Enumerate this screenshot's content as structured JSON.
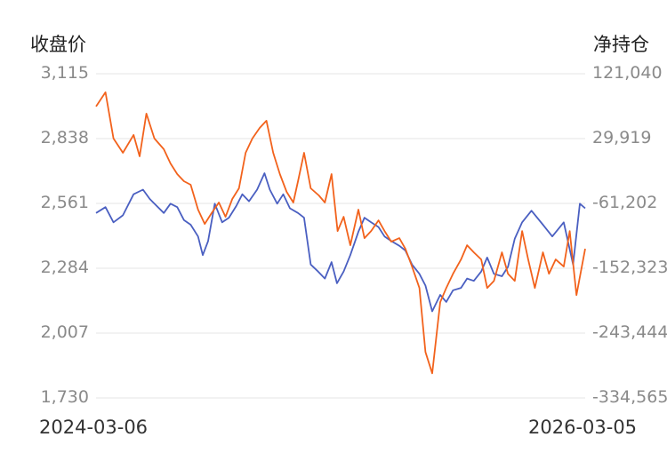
{
  "chart_data": {
    "type": "line",
    "title": "",
    "left_axis_title": "收盘价",
    "right_axis_title": "净持仓",
    "x_range": [
      "2024-03-06",
      "2026-03-05"
    ],
    "x_labels": [
      "2024-03-06",
      "2026-03-05"
    ],
    "left_ticks": [
      "3,115",
      "2,838",
      "2,561",
      "2,284",
      "2,007",
      "1,730"
    ],
    "right_ticks": [
      "121,040",
      "29,919",
      "-61,202",
      "-152,323",
      "-243,444",
      "-334,565"
    ],
    "y_left_lim": [
      1730,
      3115
    ],
    "y_right_lim": [
      -334565,
      121040
    ],
    "grid": true,
    "series": [
      {
        "axis": "left",
        "color": "#4a5fc1",
        "points": [
          [
            "2024-03-06",
            2520
          ],
          [
            "2024-03-20",
            2545
          ],
          [
            "2024-04-01",
            2480
          ],
          [
            "2024-04-15",
            2510
          ],
          [
            "2024-05-01",
            2600
          ],
          [
            "2024-05-15",
            2620
          ],
          [
            "2024-05-25",
            2580
          ],
          [
            "2024-06-01",
            2560
          ],
          [
            "2024-06-15",
            2520
          ],
          [
            "2024-06-25",
            2560
          ],
          [
            "2024-07-05",
            2545
          ],
          [
            "2024-07-15",
            2490
          ],
          [
            "2024-07-25",
            2470
          ],
          [
            "2024-08-05",
            2420
          ],
          [
            "2024-08-12",
            2340
          ],
          [
            "2024-08-20",
            2400
          ],
          [
            "2024-08-30",
            2560
          ],
          [
            "2024-09-10",
            2480
          ],
          [
            "2024-09-20",
            2500
          ],
          [
            "2024-10-01",
            2550
          ],
          [
            "2024-10-10",
            2600
          ],
          [
            "2024-10-20",
            2570
          ],
          [
            "2024-11-01",
            2620
          ],
          [
            "2024-11-12",
            2690
          ],
          [
            "2024-11-20",
            2620
          ],
          [
            "2024-12-01",
            2560
          ],
          [
            "2024-12-10",
            2600
          ],
          [
            "2024-12-20",
            2540
          ],
          [
            "2025-01-01",
            2520
          ],
          [
            "2025-01-10",
            2500
          ],
          [
            "2025-01-20",
            2300
          ],
          [
            "2025-01-31",
            2270
          ],
          [
            "2025-02-10",
            2240
          ],
          [
            "2025-02-20",
            2310
          ],
          [
            "2025-02-28",
            2220
          ],
          [
            "2025-03-10",
            2270
          ],
          [
            "2025-03-20",
            2340
          ],
          [
            "2025-04-01",
            2440
          ],
          [
            "2025-04-10",
            2500
          ],
          [
            "2025-04-20",
            2480
          ],
          [
            "2025-05-01",
            2460
          ],
          [
            "2025-05-10",
            2420
          ],
          [
            "2025-05-20",
            2400
          ],
          [
            "2025-06-01",
            2380
          ],
          [
            "2025-06-10",
            2360
          ],
          [
            "2025-06-20",
            2300
          ],
          [
            "2025-07-01",
            2260
          ],
          [
            "2025-07-10",
            2210
          ],
          [
            "2025-07-20",
            2100
          ],
          [
            "2025-08-01",
            2170
          ],
          [
            "2025-08-10",
            2140
          ],
          [
            "2025-08-20",
            2190
          ],
          [
            "2025-09-01",
            2200
          ],
          [
            "2025-09-10",
            2240
          ],
          [
            "2025-09-20",
            2230
          ],
          [
            "2025-10-01",
            2270
          ],
          [
            "2025-10-10",
            2330
          ],
          [
            "2025-10-20",
            2260
          ],
          [
            "2025-11-01",
            2250
          ],
          [
            "2025-11-10",
            2290
          ],
          [
            "2025-11-20",
            2410
          ],
          [
            "2025-12-01",
            2480
          ],
          [
            "2025-12-15",
            2530
          ],
          [
            "2026-01-01",
            2470
          ],
          [
            "2026-01-15",
            2420
          ],
          [
            "2026-02-01",
            2480
          ],
          [
            "2026-02-15",
            2300
          ],
          [
            "2026-02-25",
            2560
          ],
          [
            "2026-03-05",
            2540
          ]
        ]
      },
      {
        "axis": "right",
        "color": "#f2621c",
        "points": [
          [
            "2024-03-06",
            75000
          ],
          [
            "2024-03-20",
            95000
          ],
          [
            "2024-04-01",
            30000
          ],
          [
            "2024-04-15",
            10000
          ],
          [
            "2024-05-01",
            35000
          ],
          [
            "2024-05-10",
            5000
          ],
          [
            "2024-05-20",
            65000
          ],
          [
            "2024-06-01",
            30000
          ],
          [
            "2024-06-15",
            15000
          ],
          [
            "2024-06-25",
            -5000
          ],
          [
            "2024-07-05",
            -20000
          ],
          [
            "2024-07-15",
            -30000
          ],
          [
            "2024-07-25",
            -35000
          ],
          [
            "2024-08-05",
            -70000
          ],
          [
            "2024-08-15",
            -90000
          ],
          [
            "2024-08-25",
            -75000
          ],
          [
            "2024-09-05",
            -60000
          ],
          [
            "2024-09-15",
            -80000
          ],
          [
            "2024-09-25",
            -55000
          ],
          [
            "2024-10-05",
            -40000
          ],
          [
            "2024-10-15",
            10000
          ],
          [
            "2024-10-25",
            30000
          ],
          [
            "2024-11-05",
            45000
          ],
          [
            "2024-11-15",
            55000
          ],
          [
            "2024-11-25",
            10000
          ],
          [
            "2024-12-05",
            -20000
          ],
          [
            "2024-12-15",
            -45000
          ],
          [
            "2024-12-25",
            -60000
          ],
          [
            "2025-01-01",
            -30000
          ],
          [
            "2025-01-10",
            10000
          ],
          [
            "2025-01-20",
            -40000
          ],
          [
            "2025-02-01",
            -50000
          ],
          [
            "2025-02-10",
            -60000
          ],
          [
            "2025-02-20",
            -20000
          ],
          [
            "2025-03-01",
            -100000
          ],
          [
            "2025-03-10",
            -80000
          ],
          [
            "2025-03-20",
            -120000
          ],
          [
            "2025-04-01",
            -70000
          ],
          [
            "2025-04-10",
            -110000
          ],
          [
            "2025-04-20",
            -100000
          ],
          [
            "2025-05-01",
            -85000
          ],
          [
            "2025-05-10",
            -100000
          ],
          [
            "2025-05-20",
            -115000
          ],
          [
            "2025-06-01",
            -110000
          ],
          [
            "2025-06-10",
            -125000
          ],
          [
            "2025-06-20",
            -150000
          ],
          [
            "2025-07-01",
            -180000
          ],
          [
            "2025-07-10",
            -270000
          ],
          [
            "2025-07-20",
            -300000
          ],
          [
            "2025-08-01",
            -200000
          ],
          [
            "2025-08-10",
            -180000
          ],
          [
            "2025-08-20",
            -160000
          ],
          [
            "2025-09-01",
            -140000
          ],
          [
            "2025-09-10",
            -120000
          ],
          [
            "2025-09-20",
            -130000
          ],
          [
            "2025-10-01",
            -140000
          ],
          [
            "2025-10-10",
            -180000
          ],
          [
            "2025-10-20",
            -170000
          ],
          [
            "2025-11-01",
            -130000
          ],
          [
            "2025-11-10",
            -160000
          ],
          [
            "2025-11-20",
            -170000
          ],
          [
            "2025-12-01",
            -100000
          ],
          [
            "2025-12-10",
            -140000
          ],
          [
            "2025-12-20",
            -180000
          ],
          [
            "2026-01-01",
            -130000
          ],
          [
            "2026-01-10",
            -160000
          ],
          [
            "2026-01-20",
            -140000
          ],
          [
            "2026-02-01",
            -150000
          ],
          [
            "2026-02-10",
            -100000
          ],
          [
            "2026-02-20",
            -190000
          ],
          [
            "2026-03-05",
            -125000
          ]
        ]
      }
    ]
  }
}
